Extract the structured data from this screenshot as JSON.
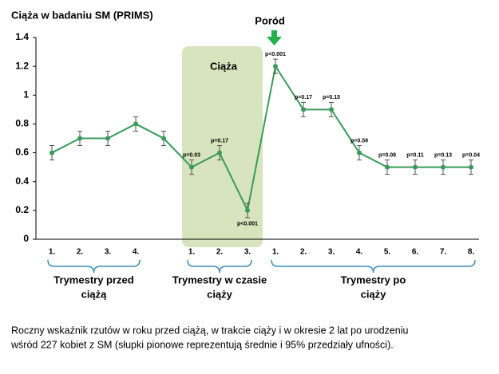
{
  "chart_data": {
    "type": "line",
    "title": "Ciąża w badaniu SM (PRIMS)",
    "categories": [
      "1.",
      "2.",
      "3.",
      "4.",
      null,
      "1.",
      "2.",
      "3.",
      "1.",
      "2.",
      "3.",
      "4.",
      "5.",
      "6.",
      "7.",
      "8."
    ],
    "series": [
      {
        "color": "#3a9a5b",
        "values": [
          0.6,
          0.7,
          0.7,
          0.8,
          0.7,
          0.5,
          0.6,
          0.2,
          1.2,
          0.9,
          0.9,
          0.6,
          0.5,
          0.5,
          0.5,
          0.5
        ],
        "errors": [
          0.05,
          0.05,
          0.05,
          0.05,
          0.05,
          0.05,
          0.05,
          0.05,
          0.05,
          0.05,
          0.05,
          0.05,
          0.05,
          0.05,
          0.05,
          0.05
        ],
        "p_labels": [
          null,
          null,
          null,
          null,
          null,
          "p=0.03",
          "p=0.17",
          "p<0.001",
          "p<0.001",
          "p=0.17",
          "p=0.15",
          "p=0.59",
          "p=0.08",
          "p=0.11",
          "p=0.13",
          "p=0.04"
        ]
      }
    ],
    "ylim": [
      0,
      1.4
    ],
    "yticks": [
      0,
      0.2,
      0.4,
      0.6,
      0.8,
      1,
      1.2,
      1.4
    ],
    "shaded_label": "Ciąża",
    "event_label": "Poród",
    "groups": [
      [
        "Trymestry przed",
        "ciążą"
      ],
      [
        "Trymestry w czasie",
        "ciąży"
      ],
      [
        "Trymestry po",
        "ciąży"
      ]
    ],
    "caption": [
      "Roczny wskaźnik rzutów w roku przed ciążą, w trakcie ciąży i w okresie 2 lat po urodzeniu",
      "wśród 227 kobiet z SM (słupki pionowe reprezentują średnie i 95% przedziały ufności)."
    ]
  }
}
